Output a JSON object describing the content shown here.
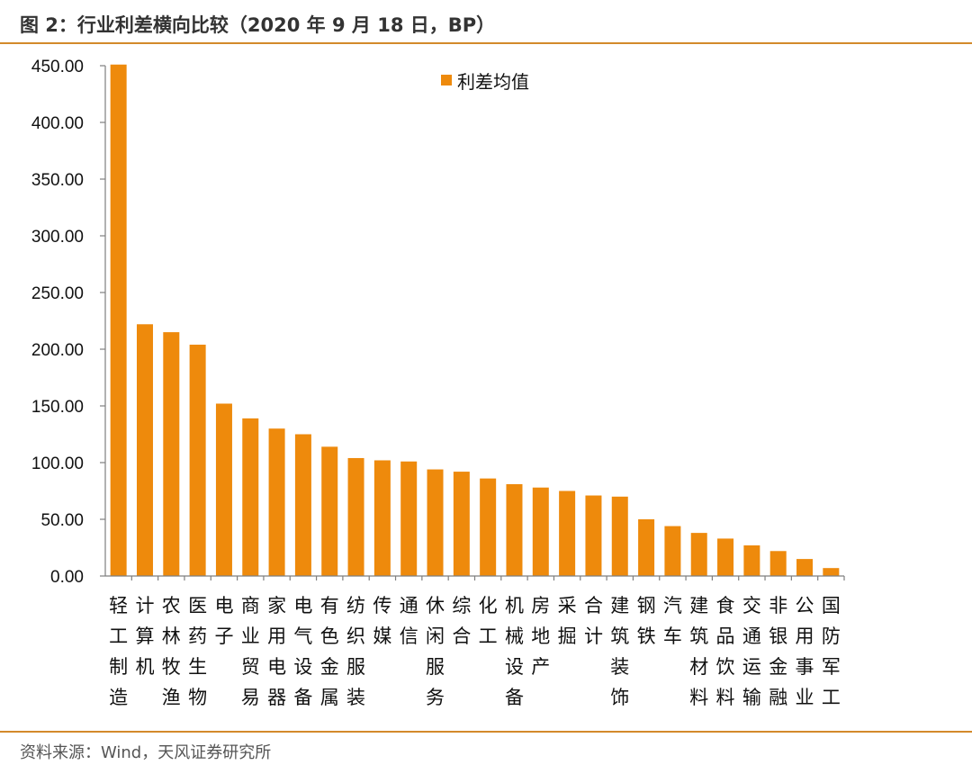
{
  "header": {
    "title": "图 2：行业利差横向比较（2020 年 9 月 18 日，BP）"
  },
  "footer": {
    "source": "资料来源：Wind，天风证券研究所"
  },
  "chart_data": {
    "type": "bar",
    "title": "图 2：行业利差横向比较（2020 年 9 月 18 日，BP）",
    "xlabel": "",
    "ylabel": "",
    "ylim": [
      0,
      450
    ],
    "yticks": [
      "0.00",
      "50.00",
      "100.00",
      "150.00",
      "200.00",
      "250.00",
      "300.00",
      "350.00",
      "400.00",
      "450.00"
    ],
    "grid": false,
    "legend": {
      "position": "top-center",
      "entries": [
        "利差均值"
      ]
    },
    "bar_color": "#ee8a0c",
    "categories": [
      "轻工制造",
      "计算机",
      "农林牧渔",
      "医药生物",
      "电子",
      "商业贸易",
      "家用电器",
      "电气设备",
      "有色金属",
      "纺织服装",
      "传媒",
      "通信",
      "休闲服务",
      "综合",
      "化工",
      "机械设备",
      "房地产",
      "采掘",
      "合计",
      "建筑装饰",
      "钢铁",
      "汽车",
      "建筑材料",
      "食品饮料",
      "交通运输",
      "非银金融",
      "公用事业",
      "国防军工"
    ],
    "series": [
      {
        "name": "利差均值",
        "values": [
          451,
          222,
          215,
          204,
          152,
          139,
          130,
          125,
          114,
          104,
          102,
          101,
          94,
          92,
          86,
          81,
          78,
          75,
          71,
          70,
          50,
          44,
          38,
          33,
          27,
          22,
          15,
          7
        ]
      }
    ]
  }
}
